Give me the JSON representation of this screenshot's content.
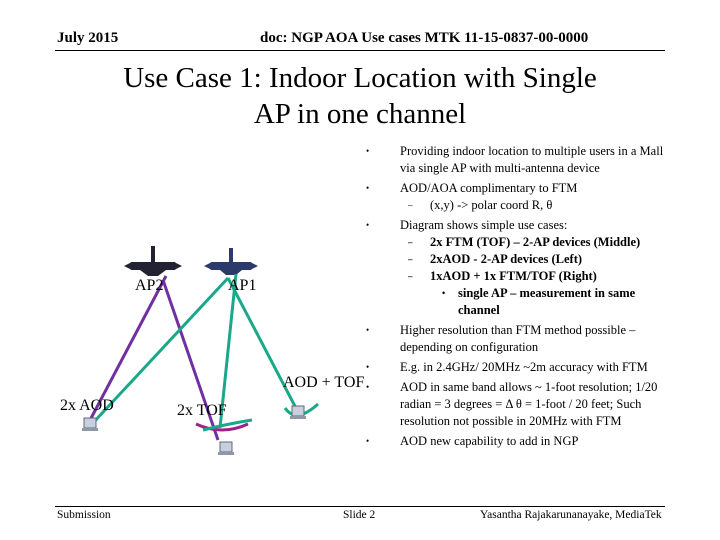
{
  "header": {
    "date": "July 2015",
    "doc": "doc: NGP AOA Use cases MTK 11-15-0837-00-0000"
  },
  "title": {
    "line1": "Use Case 1: Indoor Location with Single",
    "line2": "AP in one channel"
  },
  "bullets": [
    {
      "level": 1,
      "text": "Providing indoor location to multiple users in a Mall via single AP with multi-antenna device",
      "bold": false
    },
    {
      "level": 1,
      "text": "AOD/AOA complimentary to FTM",
      "bold": false
    },
    {
      "level": 2,
      "text": "(x,y) -> polar coord R, θ",
      "bold": false
    },
    {
      "level": 1,
      "text": "Diagram shows simple use cases:",
      "bold": false
    },
    {
      "level": 2,
      "text": "2x FTM (TOF) – 2-AP devices (Middle)",
      "bold": true
    },
    {
      "level": 2,
      "text": "2xAOD - 2-AP devices (Left)",
      "bold": true
    },
    {
      "level": 2,
      "text": "1xAOD + 1x FTM/TOF (Right)",
      "bold": true
    },
    {
      "level": 3,
      "text": "single AP – measurement in same channel",
      "bold": true
    },
    {
      "level": 1,
      "text": "Higher resolution than FTM method possible – depending on configuration",
      "bold": false
    },
    {
      "level": 1,
      "text": "E.g. in 2.4GHz/ 20MHz ~2m accuracy with FTM",
      "bold": false
    },
    {
      "level": 1,
      "text": "AOD in same band allows ~ 1-foot resolution; 1/20 radian = 3 degrees = Δ θ = 1-foot / 20 feet; Such resolution not possible in 20MHz with FTM",
      "bold": false
    },
    {
      "level": 1,
      "text": "AOD new capability to add in NGP",
      "bold": false
    }
  ],
  "diagram": {
    "ap2_label": "AP2",
    "ap1_label": "AP1",
    "aod_tof_label": "AOD + TOF",
    "aod2x_label": "2x AOD",
    "tof2x_label": "2x TOF",
    "colors": {
      "purple": "#7030a0",
      "green": "#1aa88a",
      "magenta": "#a0208a",
      "ap_dark": "#222233",
      "ap_navy": "#2a3a6a"
    },
    "icons": [
      "ap2-router-icon",
      "ap1-router-icon",
      "laptop-icon"
    ]
  },
  "footer": {
    "left": "Submission",
    "center": "Slide 2",
    "right": "Yasantha Rajakarunanayake, MediaTek"
  }
}
